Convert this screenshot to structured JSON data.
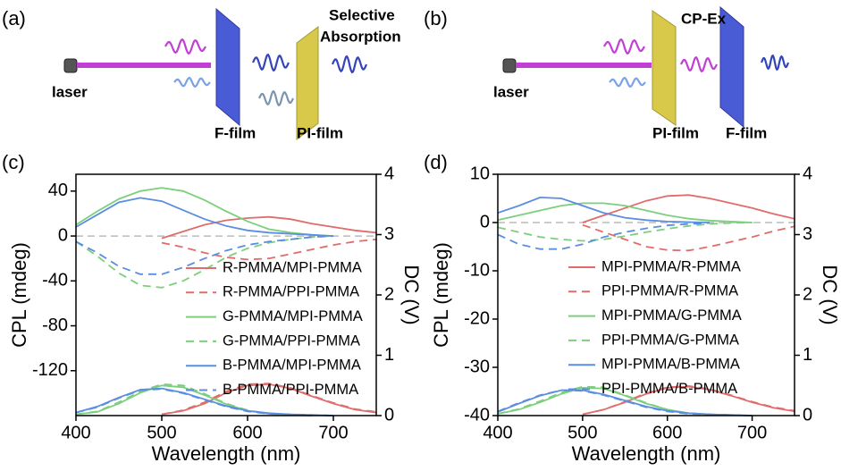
{
  "schematic_a": {
    "label": "(a)",
    "laser": "laser",
    "film1": "F-film",
    "film2": "PI-film",
    "note_line1": "Selective",
    "note_line2": "Absorption"
  },
  "schematic_b": {
    "label": "(b)",
    "laser": "laser",
    "note": "CP-Ex",
    "film1": "PI-film",
    "film2": "F-film"
  },
  "chart_data": [
    {
      "type": "line",
      "panel": "(c)",
      "xlabel": "Wavelength (nm)",
      "ylabel": "CPL (mdeg)",
      "y2label": "DC (V)",
      "x": [
        400,
        425,
        450,
        475,
        500,
        525,
        550,
        575,
        600,
        625,
        650,
        675,
        700,
        725,
        750
      ],
      "xlim": [
        400,
        750
      ],
      "xticks": [
        400,
        500,
        600,
        700
      ],
      "ylim": [
        -160,
        55
      ],
      "yticks": [
        -120,
        -80,
        -40,
        0,
        40
      ],
      "y2lim": [
        0,
        4
      ],
      "y2ticks": [
        0,
        1,
        2,
        3,
        4
      ],
      "zero_line": true,
      "legend": "right",
      "series": [
        {
          "name": "R-PMMA/MPI-PMMA",
          "color": "#e06c6c",
          "dash": false,
          "values": [
            null,
            null,
            null,
            null,
            -2,
            4,
            10,
            14,
            16,
            17,
            15,
            11,
            8,
            5,
            3
          ]
        },
        {
          "name": "R-PMMA/PPI-PMMA",
          "color": "#e06c6c",
          "dash": true,
          "values": [
            null,
            null,
            null,
            null,
            -6,
            -10,
            -15,
            -19,
            -21,
            -20,
            -16,
            -12,
            -8,
            -5,
            -3
          ]
        },
        {
          "name": "G-PMMA/MPI-PMMA",
          "color": "#7ccf7c",
          "dash": false,
          "values": [
            10,
            22,
            33,
            40,
            43,
            40,
            32,
            22,
            13,
            6,
            3,
            1,
            0,
            null,
            null
          ]
        },
        {
          "name": "G-PMMA/PPI-PMMA",
          "color": "#7ccf7c",
          "dash": true,
          "values": [
            -5,
            -18,
            -33,
            -44,
            -46,
            -40,
            -30,
            -19,
            -11,
            -6,
            -3,
            -1,
            0,
            null,
            null
          ]
        },
        {
          "name": "B-PMMA/MPI-PMMA",
          "color": "#5b8de0",
          "dash": false,
          "values": [
            8,
            19,
            30,
            34,
            31,
            23,
            15,
            9,
            5,
            3,
            2,
            1,
            0,
            null,
            null
          ]
        },
        {
          "name": "B-PMMA/PPI-PMMA",
          "color": "#5b8de0",
          "dash": true,
          "values": [
            -5,
            -15,
            -27,
            -34,
            -34,
            -28,
            -20,
            -13,
            -8,
            -5,
            -3,
            -1,
            0,
            null,
            null
          ]
        },
        {
          "color": "#e06c6c",
          "dash": false,
          "axis": "y2",
          "values": [
            null,
            null,
            null,
            null,
            0.02,
            0.08,
            0.2,
            0.38,
            0.5,
            0.52,
            0.45,
            0.32,
            0.2,
            0.1,
            0.05
          ]
        },
        {
          "color": "#e06c6c",
          "dash": true,
          "axis": "y2",
          "values": [
            null,
            null,
            null,
            null,
            0.02,
            0.09,
            0.22,
            0.4,
            0.52,
            0.53,
            0.46,
            0.33,
            0.21,
            0.11,
            0.06
          ]
        },
        {
          "color": "#7ccf7c",
          "dash": false,
          "axis": "y2",
          "values": [
            0.02,
            0.06,
            0.2,
            0.38,
            0.5,
            0.47,
            0.34,
            0.19,
            0.08,
            0.03,
            0.01,
            0,
            null,
            null,
            null
          ]
        },
        {
          "color": "#7ccf7c",
          "dash": true,
          "axis": "y2",
          "values": [
            0.02,
            0.07,
            0.22,
            0.4,
            0.52,
            0.5,
            0.36,
            0.2,
            0.09,
            0.03,
            0.01,
            0,
            null,
            null,
            null
          ]
        },
        {
          "color": "#5b8de0",
          "dash": false,
          "axis": "y2",
          "values": [
            0.05,
            0.15,
            0.3,
            0.43,
            0.45,
            0.38,
            0.27,
            0.16,
            0.08,
            0.04,
            0.02,
            0.01,
            0,
            null,
            null
          ]
        },
        {
          "color": "#5b8de0",
          "dash": true,
          "axis": "y2",
          "values": [
            0.05,
            0.14,
            0.29,
            0.42,
            0.44,
            0.37,
            0.26,
            0.15,
            0.07,
            0.03,
            0.02,
            0.01,
            0,
            null,
            null
          ]
        }
      ]
    },
    {
      "type": "line",
      "panel": "(d)",
      "xlabel": "Wavelength (nm)",
      "ylabel": "CPL (mdeg)",
      "y2label": "DC (V)",
      "x": [
        400,
        425,
        450,
        475,
        500,
        525,
        550,
        575,
        600,
        625,
        650,
        675,
        700,
        725,
        750
      ],
      "xlim": [
        400,
        750
      ],
      "xticks": [
        400,
        500,
        600,
        700
      ],
      "ylim": [
        -40,
        10
      ],
      "yticks": [
        -40,
        -30,
        -20,
        -10,
        0,
        10
      ],
      "y2lim": [
        0,
        4
      ],
      "y2ticks": [
        0,
        1,
        2,
        3,
        4
      ],
      "zero_line": true,
      "legend": "right",
      "series": [
        {
          "name": "MPI-PMMA/R-PMMA",
          "color": "#e06c6c",
          "dash": false,
          "values": [
            null,
            null,
            null,
            null,
            0,
            1.5,
            3,
            4.5,
            5.5,
            5.7,
            5,
            4,
            3,
            1.8,
            0.8
          ]
        },
        {
          "name": "PPI-PMMA/R-PMMA",
          "color": "#e06c6c",
          "dash": true,
          "values": [
            null,
            null,
            null,
            null,
            -0.5,
            -2,
            -3.5,
            -5,
            -5.7,
            -5.8,
            -5,
            -4,
            -3,
            -1.8,
            -0.8
          ]
        },
        {
          "name": "MPI-PMMA/G-PMMA",
          "color": "#7ccf7c",
          "dash": false,
          "values": [
            0.5,
            1.5,
            2.5,
            3.5,
            4,
            4,
            3.5,
            2.5,
            1.5,
            0.8,
            0.4,
            0.2,
            0,
            null,
            null
          ]
        },
        {
          "name": "PPI-PMMA/G-PMMA",
          "color": "#7ccf7c",
          "dash": true,
          "values": [
            -1,
            -2,
            -3,
            -3.5,
            -3.8,
            -3.5,
            -2.8,
            -2,
            -1.3,
            -0.7,
            -0.3,
            -0.1,
            0,
            null,
            null
          ]
        },
        {
          "name": "MPI-PMMA/B-PMMA",
          "color": "#5b8de0",
          "dash": false,
          "values": [
            2,
            3.5,
            5.2,
            5,
            3.5,
            2,
            1,
            0.5,
            0.2,
            0.1,
            0,
            null,
            null,
            null,
            null
          ]
        },
        {
          "name": "PPI-PMMA/B-PMMA",
          "color": "#5b8de0",
          "dash": true,
          "values": [
            -2.5,
            -4.5,
            -5.5,
            -5.5,
            -4.5,
            -3,
            -2,
            -1.2,
            -0.6,
            -0.3,
            -0.1,
            null,
            null,
            null,
            null
          ]
        },
        {
          "color": "#e06c6c",
          "dash": false,
          "axis": "y2",
          "values": [
            null,
            null,
            null,
            null,
            0.02,
            0.1,
            0.22,
            0.36,
            0.46,
            0.48,
            0.43,
            0.33,
            0.22,
            0.13,
            0.07
          ]
        },
        {
          "color": "#e06c6c",
          "dash": true,
          "axis": "y2",
          "values": [
            null,
            null,
            null,
            null,
            0.02,
            0.1,
            0.23,
            0.37,
            0.47,
            0.49,
            0.44,
            0.34,
            0.23,
            0.14,
            0.08
          ]
        },
        {
          "color": "#7ccf7c",
          "dash": false,
          "axis": "y2",
          "values": [
            0.03,
            0.1,
            0.22,
            0.36,
            0.46,
            0.45,
            0.33,
            0.2,
            0.1,
            0.04,
            0.02,
            0.01,
            0,
            null,
            null
          ]
        },
        {
          "color": "#7ccf7c",
          "dash": true,
          "axis": "y2",
          "values": [
            0.03,
            0.11,
            0.24,
            0.38,
            0.48,
            0.47,
            0.34,
            0.21,
            0.1,
            0.04,
            0.02,
            0.01,
            0,
            null,
            null
          ]
        },
        {
          "color": "#5b8de0",
          "dash": false,
          "axis": "y2",
          "values": [
            0.06,
            0.2,
            0.33,
            0.42,
            0.42,
            0.35,
            0.25,
            0.15,
            0.08,
            0.04,
            0.02,
            0.01,
            0,
            null,
            null
          ]
        },
        {
          "color": "#5b8de0",
          "dash": true,
          "axis": "y2",
          "values": [
            0.07,
            0.21,
            0.34,
            0.42,
            0.41,
            0.34,
            0.24,
            0.14,
            0.07,
            0.03,
            0.02,
            0.01,
            0,
            null,
            null
          ]
        }
      ]
    }
  ]
}
